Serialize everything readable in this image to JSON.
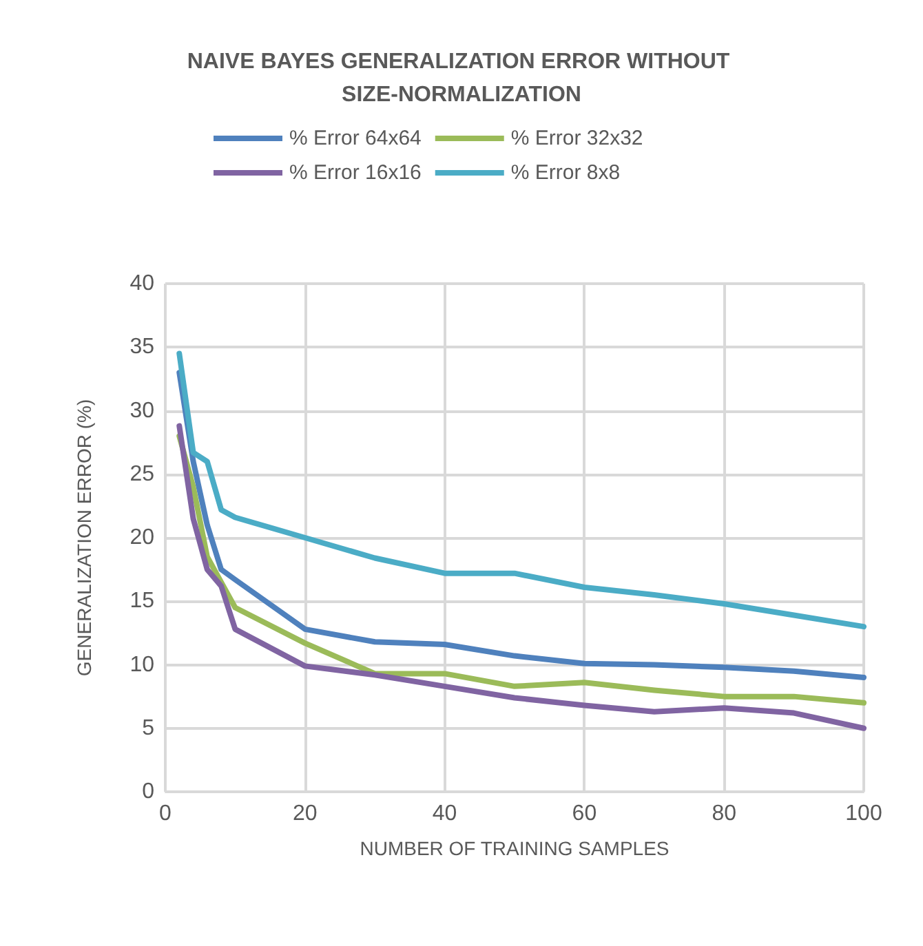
{
  "chart_data": {
    "type": "line",
    "title": "NAIVE BAYES GENERALIZATION ERROR WITHOUT SIZE-NORMALIZATION",
    "xlabel": "NUMBER OF TRAINING SAMPLES",
    "ylabel": "GENERALIZATION ERROR (%)",
    "x": [
      2,
      4,
      6,
      8,
      10,
      20,
      30,
      40,
      50,
      60,
      70,
      80,
      90,
      100
    ],
    "series": [
      {
        "name": "% Error 64x64",
        "color": "#4f81bd",
        "values": [
          33,
          26,
          21,
          17.5,
          16.7,
          12.8,
          11.8,
          11.6,
          10.7,
          10.1,
          10,
          9.8,
          9.5,
          9
        ]
      },
      {
        "name": "% Error 32x32",
        "color": "#9bbb59",
        "values": [
          28,
          24,
          18.5,
          16.5,
          14.5,
          11.7,
          9.3,
          9.3,
          8.3,
          8.6,
          8,
          7.5,
          7.5,
          7
        ]
      },
      {
        "name": "% Error 16x16",
        "color": "#8064a2",
        "values": [
          28.8,
          21.5,
          17.5,
          16.2,
          12.8,
          9.9,
          9.2,
          8.3,
          7.4,
          6.8,
          6.3,
          6.6,
          6.2,
          5
        ]
      },
      {
        "name": "% Error 8x8",
        "color": "#4bacc6",
        "values": [
          34.5,
          26.7,
          26,
          22.2,
          21.6,
          20,
          18.4,
          17.2,
          17.2,
          16.1,
          15.5,
          14.8,
          13.9,
          13
        ]
      }
    ],
    "xlim": [
      0,
      100
    ],
    "xticks": [
      0,
      20,
      40,
      60,
      80,
      100
    ],
    "ylim": [
      0,
      40
    ],
    "yticks": [
      0,
      5,
      10,
      15,
      20,
      25,
      30,
      35,
      40
    ],
    "grid": true,
    "legend": "top",
    "marker": "none",
    "line_style": "solid"
  }
}
